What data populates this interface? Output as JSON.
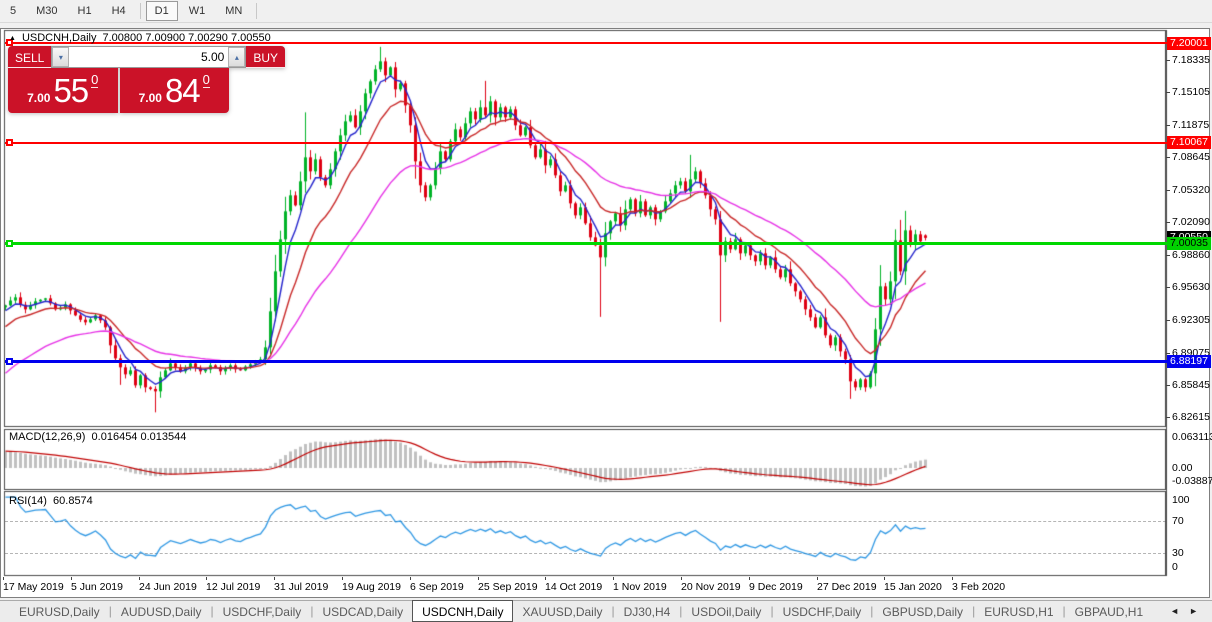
{
  "toolbar": {
    "buttons": [
      {
        "label": "5",
        "active": false
      },
      {
        "label": "M30",
        "active": false
      },
      {
        "label": "H1",
        "active": false
      },
      {
        "label": "H4",
        "active": false,
        "sep_after": true
      },
      {
        "label": "D1",
        "active": true
      },
      {
        "label": "W1",
        "active": false
      },
      {
        "label": "MN",
        "active": false,
        "sep_after": true
      }
    ]
  },
  "chart": {
    "title_expand_glyph": "▲",
    "title_symbol": "USDCNH,Daily",
    "title_ohlc": "7.00800 7.00900 7.00290 7.00550",
    "trade_panel": {
      "sell_label": "SELL",
      "buy_label": "BUY",
      "volume": "5.00",
      "volume_down_glyph": "▾",
      "volume_up_glyph": "▴",
      "sell_price_small": "7.00",
      "sell_price_big": "55",
      "sell_price_sup": "0",
      "buy_price_small": "7.00",
      "buy_price_big": "84",
      "buy_price_sup": "0"
    },
    "price_axis": {
      "ticks": [
        "7.18335",
        "7.15105",
        "7.11875",
        "7.08645",
        "7.05320",
        "7.02090",
        "6.98860",
        "6.95630",
        "6.92305",
        "6.89075",
        "6.85845",
        "6.82615"
      ],
      "tags": [
        {
          "value": "7.20001",
          "bg": "#ff0000",
          "fg": "#ffffff"
        },
        {
          "value": "7.10067",
          "bg": "#ff0000",
          "fg": "#ffffff"
        },
        {
          "value": "7.00550",
          "bg": "#000000",
          "fg": "#ffffff"
        },
        {
          "value": "7.00035",
          "bg": "#00d200",
          "fg": "#000000"
        },
        {
          "value": "6.88197",
          "bg": "#0000ee",
          "fg": "#ffffff"
        }
      ]
    },
    "hlines": [
      {
        "price": 7.20001,
        "color": "#ff0000",
        "thickness": 2
      },
      {
        "price": 7.10067,
        "color": "#ff0000",
        "thickness": 2
      },
      {
        "price": 7.00035,
        "color": "#00d800",
        "thickness": 3
      },
      {
        "price": 6.88197,
        "color": "#0000ee",
        "thickness": 3
      }
    ]
  },
  "indicators": {
    "macd": {
      "label": "MACD(12,26,9)",
      "values": "0.016454 0.013544",
      "axis": [
        "0.063113",
        "0.00",
        "-0.038872"
      ]
    },
    "rsi": {
      "label": "RSI(14)",
      "value": "60.8574",
      "axis": [
        "100",
        "70",
        "30",
        "0"
      ],
      "levels": [
        70,
        30
      ]
    }
  },
  "date_axis": [
    "17 May 2019",
    "5 Jun 2019",
    "24 Jun 2019",
    "12 Jul 2019",
    "31 Jul 2019",
    "19 Aug 2019",
    "6 Sep 2019",
    "25 Sep 2019",
    "14 Oct 2019",
    "1 Nov 2019",
    "20 Nov 2019",
    "9 Dec 2019",
    "27 Dec 2019",
    "15 Jan 2020",
    "3 Feb 2020"
  ],
  "tabs": {
    "items": [
      {
        "label": "EURUSD,Daily",
        "active": false
      },
      {
        "label": "AUDUSD,Daily",
        "active": false
      },
      {
        "label": "USDCHF,Daily",
        "active": false
      },
      {
        "label": "USDCAD,Daily",
        "active": false
      },
      {
        "label": "USDCNH,Daily",
        "active": true
      },
      {
        "label": "XAUUSD,Daily",
        "active": false
      },
      {
        "label": "DJ30,H4",
        "active": false
      },
      {
        "label": "USDOil,Daily",
        "active": false
      },
      {
        "label": "USDCHF,Daily",
        "active": false
      },
      {
        "label": "GBPUSD,Daily",
        "active": false
      },
      {
        "label": "EURUSD,H1",
        "active": false
      },
      {
        "label": "GBPAUD,H1",
        "active": false
      }
    ],
    "nav_prev": "◄",
    "nav_next": "►"
  },
  "colors": {
    "candle_up": "#00b327",
    "candle_down": "#de0013",
    "ma_fast": "#2424cc",
    "ma_mid": "#c82828",
    "ma_slow": "#e632e6",
    "macd_hist": "#c0c0c0",
    "macd_signal": "#c00000",
    "rsi_line": "#2e97e3"
  },
  "chart_data": {
    "type": "candlestick",
    "symbol": "USDCNH",
    "timeframe": "Daily",
    "last_bar_ohlc": [
      7.008,
      7.009,
      7.0029,
      7.0055
    ],
    "levels": {
      "resistance_1": 7.20001,
      "resistance_2": 7.10067,
      "pivot": 7.00035,
      "support": 6.88197,
      "current_bid": 7.0055,
      "current_ask": 7.0084
    },
    "noise_seed": 20200207,
    "prehistory": [
      [
        -50,
        6.705
      ],
      [
        -35,
        6.76
      ],
      [
        -20,
        6.852
      ],
      [
        -10,
        6.905
      ],
      [
        -4,
        6.928
      ],
      [
        -1,
        6.936
      ]
    ],
    "price_path": [
      [
        0,
        6.938
      ],
      [
        2,
        6.946
      ],
      [
        4,
        6.934
      ],
      [
        6,
        6.942
      ],
      [
        8,
        6.945
      ],
      [
        10,
        6.934
      ],
      [
        12,
        6.939
      ],
      [
        14,
        6.928
      ],
      [
        16,
        6.921
      ],
      [
        18,
        6.928
      ],
      [
        20,
        6.916
      ],
      [
        21,
        6.898
      ],
      [
        22,
        6.885
      ],
      [
        23,
        6.876
      ],
      [
        24,
        6.869
      ],
      [
        25,
        6.873
      ],
      [
        26,
        6.858
      ],
      [
        27,
        6.868
      ],
      [
        28,
        6.856
      ],
      [
        30,
        6.852
      ],
      [
        31,
        6.866
      ],
      [
        33,
        6.88
      ],
      [
        35,
        6.872
      ],
      [
        37,
        6.88
      ],
      [
        39,
        6.872
      ],
      [
        41,
        6.878
      ],
      [
        43,
        6.872
      ],
      [
        45,
        6.878
      ],
      [
        47,
        6.873
      ],
      [
        49,
        6.879
      ],
      [
        51,
        6.884
      ],
      [
        52,
        6.896
      ],
      [
        53,
        6.932
      ],
      [
        54,
        6.972
      ],
      [
        55,
        7.004
      ],
      [
        56,
        7.032
      ],
      [
        57,
        7.048
      ],
      [
        58,
        7.038
      ],
      [
        59,
        7.062
      ],
      [
        60,
        7.086
      ],
      [
        61,
        7.072
      ],
      [
        62,
        7.084
      ],
      [
        63,
        7.066
      ],
      [
        64,
        7.058
      ],
      [
        65,
        7.074
      ],
      [
        66,
        7.092
      ],
      [
        67,
        7.108
      ],
      [
        68,
        7.122
      ],
      [
        69,
        7.128
      ],
      [
        70,
        7.116
      ],
      [
        71,
        7.132
      ],
      [
        72,
        7.15
      ],
      [
        73,
        7.162
      ],
      [
        74,
        7.174
      ],
      [
        75,
        7.182
      ],
      [
        76,
        7.168
      ],
      [
        77,
        7.176
      ],
      [
        78,
        7.154
      ],
      [
        79,
        7.16
      ],
      [
        80,
        7.138
      ],
      [
        81,
        7.118
      ],
      [
        82,
        7.082
      ],
      [
        83,
        7.058
      ],
      [
        84,
        7.046
      ],
      [
        85,
        7.058
      ],
      [
        86,
        7.075
      ],
      [
        87,
        7.092
      ],
      [
        88,
        7.084
      ],
      [
        89,
        7.102
      ],
      [
        90,
        7.114
      ],
      [
        91,
        7.106
      ],
      [
        92,
        7.12
      ],
      [
        93,
        7.132
      ],
      [
        94,
        7.124
      ],
      [
        95,
        7.136
      ],
      [
        96,
        7.128
      ],
      [
        97,
        7.142
      ],
      [
        98,
        7.126
      ],
      [
        99,
        7.136
      ],
      [
        100,
        7.126
      ],
      [
        101,
        7.134
      ],
      [
        102,
        7.118
      ],
      [
        103,
        7.108
      ],
      [
        104,
        7.116
      ],
      [
        105,
        7.098
      ],
      [
        106,
        7.086
      ],
      [
        107,
        7.094
      ],
      [
        108,
        7.078
      ],
      [
        109,
        7.084
      ],
      [
        110,
        7.068
      ],
      [
        111,
        7.052
      ],
      [
        112,
        7.058
      ],
      [
        113,
        7.04
      ],
      [
        114,
        7.028
      ],
      [
        115,
        7.036
      ],
      [
        116,
        7.02
      ],
      [
        117,
        7.006
      ],
      [
        118,
        6.998
      ],
      [
        119,
        6.986
      ],
      [
        120,
        7.01
      ],
      [
        121,
        7.022
      ],
      [
        122,
        7.03
      ],
      [
        123,
        7.018
      ],
      [
        124,
        7.034
      ],
      [
        125,
        7.044
      ],
      [
        126,
        7.03
      ],
      [
        127,
        7.042
      ],
      [
        128,
        7.028
      ],
      [
        129,
        7.036
      ],
      [
        130,
        7.024
      ],
      [
        131,
        7.032
      ],
      [
        132,
        7.042
      ],
      [
        133,
        7.05
      ],
      [
        134,
        7.058
      ],
      [
        135,
        7.062
      ],
      [
        136,
        7.052
      ],
      [
        137,
        7.064
      ],
      [
        138,
        7.072
      ],
      [
        139,
        7.06
      ],
      [
        140,
        7.048
      ],
      [
        141,
        7.034
      ],
      [
        142,
        7.024
      ],
      [
        143,
        6.988
      ],
      [
        144,
        7.002
      ],
      [
        145,
        6.994
      ],
      [
        146,
        7.004
      ],
      [
        147,
        6.99
      ],
      [
        148,
        6.998
      ],
      [
        149,
        6.988
      ],
      [
        150,
        6.982
      ],
      [
        151,
        6.99
      ],
      [
        152,
        6.978
      ],
      [
        153,
        6.986
      ],
      [
        154,
        6.974
      ],
      [
        155,
        6.966
      ],
      [
        156,
        6.974
      ],
      [
        157,
        6.96
      ],
      [
        158,
        6.952
      ],
      [
        159,
        6.944
      ],
      [
        160,
        6.934
      ],
      [
        161,
        6.926
      ],
      [
        162,
        6.916
      ],
      [
        163,
        6.926
      ],
      [
        164,
        6.908
      ],
      [
        165,
        6.898
      ],
      [
        166,
        6.906
      ],
      [
        167,
        6.892
      ],
      [
        168,
        6.884
      ],
      [
        169,
        6.862
      ],
      [
        170,
        6.856
      ],
      [
        171,
        6.864
      ],
      [
        172,
        6.856
      ],
      [
        173,
        6.87
      ],
      [
        174,
        6.914
      ],
      [
        175,
        6.957
      ],
      [
        176,
        6.944
      ],
      [
        177,
        6.962
      ],
      [
        178,
        7.003
      ],
      [
        179,
        6.972
      ],
      [
        180,
        7.013
      ],
      [
        181,
        6.999
      ],
      [
        182,
        7.009
      ],
      [
        183,
        7.002
      ],
      [
        184,
        7.0055
      ]
    ],
    "extreme_wicks": [
      [
        23,
        "low",
        6.8585
      ],
      [
        30,
        "low",
        6.831
      ],
      [
        60,
        "high",
        7.131
      ],
      [
        75,
        "high",
        7.1965
      ],
      [
        96,
        "high",
        7.1625
      ],
      [
        119,
        "low",
        6.9265
      ],
      [
        137,
        "high",
        7.0885
      ],
      [
        143,
        "low",
        6.9215
      ],
      [
        169,
        "low",
        6.8445
      ],
      [
        179,
        "high",
        7.0235
      ]
    ]
  }
}
